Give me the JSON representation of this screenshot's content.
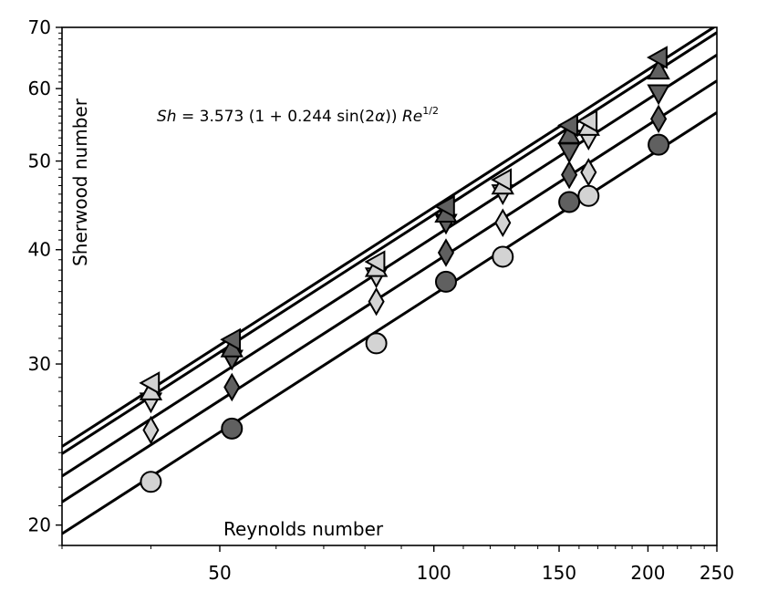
{
  "chart_data": {
    "type": "scatter",
    "title": "",
    "xlabel": "Reynolds number",
    "ylabel": "Sherwood number",
    "annotation": {
      "lhs": "Sh",
      "rhs_prefix": " = 3.573 (1 + 0.244 sin(2",
      "alpha": "α",
      "rhs_suffix": ")) ",
      "re": "Re",
      "exponent": "1/2"
    },
    "xscale": "log",
    "yscale": "log",
    "xlim": [
      30,
      250
    ],
    "ylim": [
      19,
      70
    ],
    "x_ticks": [
      50,
      100,
      150,
      200,
      250
    ],
    "x_tick_labels": [
      "50",
      "100",
      "150",
      "200",
      "250"
    ],
    "y_ticks": [
      20,
      30,
      40,
      50,
      60,
      70
    ],
    "y_tick_labels": [
      "20",
      "30",
      "40",
      "50",
      "60",
      "70"
    ],
    "grid": false,
    "fit_lines": [
      {
        "coefficient": 3.573,
        "exponent": 0.5
      },
      {
        "coefficient": 3.87,
        "exponent": 0.5
      },
      {
        "coefficient": 4.13,
        "exponent": 0.5
      },
      {
        "coefficient": 4.37,
        "exponent": 0.5
      },
      {
        "coefficient": 4.45,
        "exponent": 0.5
      }
    ],
    "series": [
      {
        "marker": "circle",
        "color": "#d3d3d3",
        "points": [
          [
            40,
            22.3
          ],
          [
            83,
            31.6
          ],
          [
            125,
            39.3
          ],
          [
            165,
            45.8
          ]
        ]
      },
      {
        "marker": "circle",
        "color": "#606060",
        "points": [
          [
            52,
            25.5
          ],
          [
            104,
            36.9
          ],
          [
            155,
            45.1
          ],
          [
            207,
            52.1
          ]
        ]
      },
      {
        "marker": "diamond",
        "color": "#d3d3d3",
        "points": [
          [
            40,
            25.4
          ],
          [
            83,
            35.1
          ],
          [
            125,
            42.8
          ],
          [
            165,
            48.6
          ]
        ]
      },
      {
        "marker": "diamond",
        "color": "#606060",
        "points": [
          [
            52,
            28.3
          ],
          [
            104,
            39.7
          ],
          [
            155,
            48.3
          ],
          [
            207,
            55.6
          ]
        ]
      },
      {
        "marker": "triangle-down",
        "color": "#d3d3d3",
        "points": [
          [
            40,
            27.3
          ],
          [
            83,
            37.4
          ],
          [
            125,
            46.1
          ],
          [
            165,
            52.9
          ]
        ]
      },
      {
        "marker": "triangle-down",
        "color": "#606060",
        "points": [
          [
            52,
            30.4
          ],
          [
            104,
            42.8
          ],
          [
            155,
            51.2
          ],
          [
            207,
            59.3
          ]
        ]
      },
      {
        "marker": "triangle-up",
        "color": "#d3d3d3",
        "points": [
          [
            40,
            28.0
          ],
          [
            83,
            38.2
          ],
          [
            125,
            47.0
          ],
          [
            165,
            54.5
          ]
        ]
      },
      {
        "marker": "triangle-up",
        "color": "#606060",
        "points": [
          [
            52,
            31.2
          ],
          [
            104,
            43.8
          ],
          [
            155,
            53.4
          ],
          [
            207,
            62.8
          ]
        ]
      },
      {
        "marker": "triangle-left",
        "color": "#d3d3d3",
        "points": [
          [
            40,
            28.6
          ],
          [
            83,
            38.8
          ],
          [
            125,
            47.7
          ],
          [
            165,
            55.3
          ]
        ]
      },
      {
        "marker": "triangle-left",
        "color": "#606060",
        "points": [
          [
            52,
            31.9
          ],
          [
            104,
            44.6
          ],
          [
            155,
            54.7
          ],
          [
            207,
            64.9
          ]
        ]
      }
    ]
  }
}
